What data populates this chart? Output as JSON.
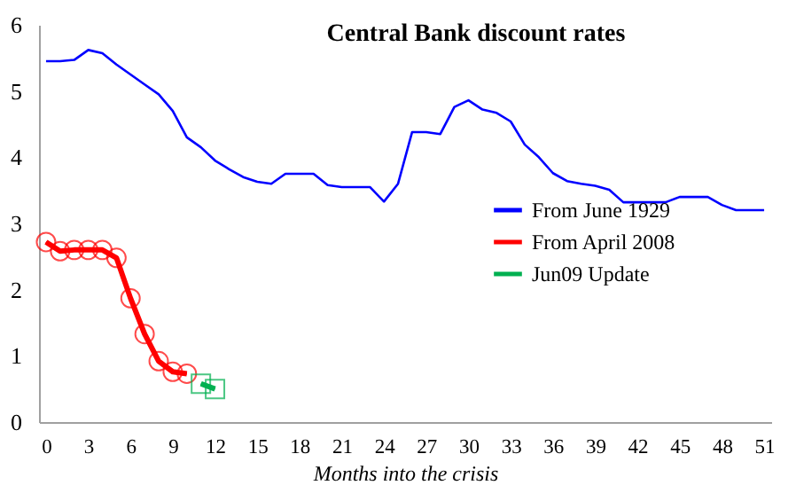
{
  "chart_data": {
    "type": "line",
    "title": "Central Bank discount rates",
    "xlabel": "Months into the crisis",
    "xlim": [
      -0.5,
      51.5
    ],
    "xticks": [
      0,
      3,
      6,
      9,
      12,
      15,
      18,
      21,
      24,
      27,
      30,
      33,
      36,
      39,
      42,
      45,
      48,
      51
    ],
    "ylim": [
      0,
      6
    ],
    "yticks": [
      0,
      1,
      2,
      3,
      4,
      5,
      6
    ],
    "grid": false,
    "legend": "right",
    "series": [
      {
        "name": "From June 1929",
        "color": "#0000ff",
        "marker": "none",
        "x": [
          0,
          1,
          2,
          3,
          4,
          5,
          6,
          7,
          8,
          9,
          10,
          11,
          12,
          13,
          14,
          15,
          16,
          17,
          18,
          19,
          20,
          21,
          22,
          23,
          24,
          25,
          26,
          27,
          28,
          29,
          30,
          31,
          32,
          33,
          34,
          35,
          36,
          37,
          38,
          39,
          40,
          41,
          42,
          43,
          44,
          45,
          46,
          47,
          48,
          49,
          50,
          51
        ],
        "values": [
          5.45,
          5.45,
          5.47,
          5.62,
          5.57,
          5.4,
          5.25,
          5.1,
          4.95,
          4.7,
          4.3,
          4.15,
          3.95,
          3.82,
          3.7,
          3.63,
          3.6,
          3.75,
          3.75,
          3.75,
          3.58,
          3.55,
          3.55,
          3.55,
          3.33,
          3.6,
          4.38,
          4.38,
          4.35,
          4.76,
          4.86,
          4.72,
          4.67,
          4.54,
          4.19,
          4.0,
          3.76,
          3.64,
          3.6,
          3.57,
          3.51,
          3.32,
          3.32,
          3.32,
          3.32,
          3.4,
          3.4,
          3.4,
          3.28,
          3.2,
          3.2,
          3.2
        ]
      },
      {
        "name": "From April 2008",
        "color": "#ff0000",
        "marker": "circle",
        "x": [
          0,
          1,
          2,
          3,
          4,
          5,
          6,
          7,
          8,
          9,
          10
        ],
        "values": [
          2.72,
          2.58,
          2.6,
          2.6,
          2.6,
          2.48,
          1.87,
          1.33,
          0.92,
          0.76,
          0.73
        ]
      },
      {
        "name": "Jun09 Update",
        "color": "#00b050",
        "marker": "square",
        "x": [
          11,
          12
        ],
        "values": [
          0.58,
          0.5
        ]
      }
    ]
  }
}
